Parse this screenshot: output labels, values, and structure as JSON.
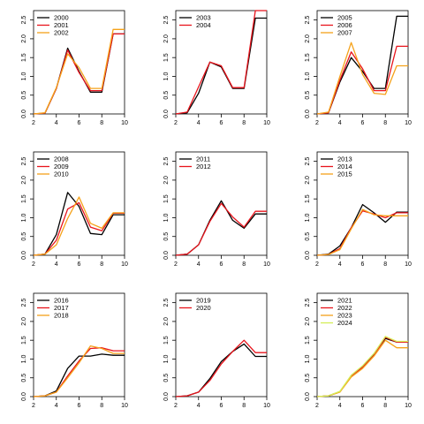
{
  "colors": {
    "black": "#000000",
    "red": "#e8141c",
    "orange": "#f5a21a",
    "yellow_green": "#d4ee57"
  },
  "chart_data": [
    {
      "type": "line",
      "x": [
        2,
        3,
        4,
        5,
        6,
        7,
        8,
        9,
        10
      ],
      "xlim": [
        2,
        10
      ],
      "ylim": [
        0,
        2.75
      ],
      "xticks": [
        2,
        4,
        6,
        8,
        10
      ],
      "yticks": [
        0.0,
        0.5,
        1.0,
        1.5,
        2.0,
        2.5
      ],
      "xtick_labels": [
        "2",
        "4",
        "6",
        "8",
        "10"
      ],
      "ytick_labels": [
        "0.0",
        "0.5",
        "1.0",
        "1.5",
        "2.0",
        "2.5"
      ],
      "legend": "top-left",
      "series": [
        {
          "name": "2000",
          "color": "black",
          "values": [
            0,
            0.02,
            0.68,
            1.75,
            1.13,
            0.58,
            0.58,
            2.13,
            2.13
          ]
        },
        {
          "name": "2001",
          "color": "red",
          "values": [
            0,
            0.02,
            0.68,
            1.7,
            1.1,
            0.62,
            0.62,
            2.13,
            2.13
          ]
        },
        {
          "name": "2002",
          "color": "orange",
          "values": [
            0,
            0.03,
            0.7,
            1.6,
            1.23,
            0.68,
            0.68,
            2.25,
            2.25
          ]
        }
      ]
    },
    {
      "type": "line",
      "x": [
        2,
        3,
        4,
        5,
        6,
        7,
        8,
        9,
        10
      ],
      "xlim": [
        2,
        10
      ],
      "ylim": [
        0,
        2.75
      ],
      "xticks": [
        2,
        4,
        6,
        8,
        10
      ],
      "yticks": [
        0.0,
        0.5,
        1.0,
        1.5,
        2.0,
        2.5
      ],
      "xtick_labels": [
        "2",
        "4",
        "6",
        "8",
        "10"
      ],
      "ytick_labels": [
        "0.0",
        "0.5",
        "1.0",
        "1.5",
        "2.0",
        "2.5"
      ],
      "legend": "top-left",
      "series": [
        {
          "name": "2003",
          "color": "black",
          "values": [
            0,
            0.03,
            0.55,
            1.38,
            1.25,
            0.68,
            0.68,
            2.55,
            2.55
          ]
        },
        {
          "name": "2004",
          "color": "red",
          "values": [
            0,
            0.05,
            0.72,
            1.38,
            1.28,
            0.7,
            0.7,
            2.75,
            2.75
          ]
        }
      ]
    },
    {
      "type": "line",
      "x": [
        2,
        3,
        4,
        5,
        6,
        7,
        8,
        9,
        10
      ],
      "xlim": [
        2,
        10
      ],
      "ylim": [
        0,
        2.75
      ],
      "xticks": [
        2,
        4,
        6,
        8,
        10
      ],
      "yticks": [
        0.0,
        0.5,
        1.0,
        1.5,
        2.0,
        2.5
      ],
      "xtick_labels": [
        "2",
        "4",
        "6",
        "8",
        "10"
      ],
      "ytick_labels": [
        "0.0",
        "0.5",
        "1.0",
        "1.5",
        "2.0",
        "2.5"
      ],
      "legend": "top-left",
      "series": [
        {
          "name": "2005",
          "color": "black",
          "values": [
            0,
            0.03,
            0.85,
            1.5,
            1.13,
            0.68,
            0.68,
            2.6,
            2.6
          ]
        },
        {
          "name": "2006",
          "color": "red",
          "values": [
            0,
            0.03,
            0.9,
            1.65,
            1.2,
            0.62,
            0.62,
            1.8,
            1.8
          ]
        },
        {
          "name": "2007",
          "color": "orange",
          "values": [
            0,
            0.05,
            1.0,
            1.9,
            1.05,
            0.55,
            0.52,
            1.28,
            1.28
          ]
        }
      ]
    },
    {
      "type": "line",
      "x": [
        2,
        3,
        4,
        5,
        6,
        7,
        8,
        9,
        10
      ],
      "xlim": [
        2,
        10
      ],
      "ylim": [
        0,
        2.75
      ],
      "xticks": [
        2,
        4,
        6,
        8,
        10
      ],
      "yticks": [
        0.0,
        0.5,
        1.0,
        1.5,
        2.0,
        2.5
      ],
      "xtick_labels": [
        "2",
        "4",
        "6",
        "8",
        "10"
      ],
      "ytick_labels": [
        "0.0",
        "0.5",
        "1.0",
        "1.5",
        "2.0",
        "2.5"
      ],
      "legend": "top-left",
      "series": [
        {
          "name": "2008",
          "color": "black",
          "values": [
            0,
            0.03,
            0.55,
            1.67,
            1.3,
            0.58,
            0.55,
            1.08,
            1.08
          ]
        },
        {
          "name": "2009",
          "color": "red",
          "values": [
            0,
            0.03,
            0.4,
            1.23,
            1.4,
            0.75,
            0.65,
            1.12,
            1.12
          ]
        },
        {
          "name": "2010",
          "color": "orange",
          "values": [
            0,
            0.03,
            0.28,
            0.98,
            1.55,
            0.85,
            0.72,
            1.13,
            1.13
          ]
        }
      ]
    },
    {
      "type": "line",
      "x": [
        2,
        3,
        4,
        5,
        6,
        7,
        8,
        9,
        10
      ],
      "xlim": [
        2,
        10
      ],
      "ylim": [
        0,
        2.75
      ],
      "xticks": [
        2,
        4,
        6,
        8,
        10
      ],
      "yticks": [
        0.0,
        0.5,
        1.0,
        1.5,
        2.0,
        2.5
      ],
      "xtick_labels": [
        "2",
        "4",
        "6",
        "8",
        "10"
      ],
      "ytick_labels": [
        "0.0",
        "0.5",
        "1.0",
        "1.5",
        "2.0",
        "2.5"
      ],
      "legend": "top-left",
      "series": [
        {
          "name": "2011",
          "color": "black",
          "values": [
            0,
            0.03,
            0.28,
            0.93,
            1.45,
            0.93,
            0.72,
            1.1,
            1.1
          ]
        },
        {
          "name": "2012",
          "color": "red",
          "values": [
            0,
            0.03,
            0.28,
            0.9,
            1.38,
            1.02,
            0.75,
            1.17,
            1.17
          ]
        }
      ]
    },
    {
      "type": "line",
      "x": [
        2,
        3,
        4,
        5,
        6,
        7,
        8,
        9,
        10
      ],
      "xlim": [
        2,
        10
      ],
      "ylim": [
        0,
        2.75
      ],
      "xticks": [
        2,
        4,
        6,
        8,
        10
      ],
      "yticks": [
        0.0,
        0.5,
        1.0,
        1.5,
        2.0,
        2.5
      ],
      "xtick_labels": [
        "2",
        "4",
        "6",
        "8",
        "10"
      ],
      "ytick_labels": [
        "0.0",
        "0.5",
        "1.0",
        "1.5",
        "2.0",
        "2.5"
      ],
      "legend": "top-left",
      "series": [
        {
          "name": "2013",
          "color": "black",
          "values": [
            0,
            0.03,
            0.25,
            0.73,
            1.35,
            1.13,
            0.88,
            1.15,
            1.15
          ]
        },
        {
          "name": "2014",
          "color": "red",
          "values": [
            0,
            0.02,
            0.18,
            0.73,
            1.18,
            1.1,
            1.0,
            1.13,
            1.13
          ]
        },
        {
          "name": "2015",
          "color": "orange",
          "values": [
            0,
            0.02,
            0.15,
            0.7,
            1.22,
            1.08,
            1.05,
            1.05,
            1.05
          ]
        }
      ]
    },
    {
      "type": "line",
      "x": [
        2,
        3,
        4,
        5,
        6,
        7,
        8,
        9,
        10
      ],
      "xlim": [
        2,
        10
      ],
      "ylim": [
        0,
        2.75
      ],
      "xticks": [
        2,
        4,
        6,
        8,
        10
      ],
      "yticks": [
        0.0,
        0.5,
        1.0,
        1.5,
        2.0,
        2.5
      ],
      "xtick_labels": [
        "2",
        "4",
        "6",
        "8",
        "10"
      ],
      "ytick_labels": [
        "0.0",
        "0.5",
        "1.0",
        "1.5",
        "2.0",
        "2.5"
      ],
      "legend": "top-left",
      "series": [
        {
          "name": "2016",
          "color": "black",
          "values": [
            0,
            0.02,
            0.15,
            0.75,
            1.08,
            1.08,
            1.13,
            1.1,
            1.1
          ]
        },
        {
          "name": "2017",
          "color": "red",
          "values": [
            0,
            0.02,
            0.12,
            0.55,
            0.95,
            1.28,
            1.3,
            1.22,
            1.22
          ]
        },
        {
          "name": "2018",
          "color": "orange",
          "values": [
            0,
            0.02,
            0.12,
            0.5,
            0.9,
            1.35,
            1.28,
            1.15,
            1.15
          ]
        }
      ]
    },
    {
      "type": "line",
      "x": [
        2,
        3,
        4,
        5,
        6,
        7,
        8,
        9,
        10
      ],
      "xlim": [
        2,
        10
      ],
      "ylim": [
        0,
        2.75
      ],
      "xticks": [
        2,
        4,
        6,
        8,
        10
      ],
      "yticks": [
        0.0,
        0.5,
        1.0,
        1.5,
        2.0,
        2.5
      ],
      "xtick_labels": [
        "2",
        "4",
        "6",
        "8",
        "10"
      ],
      "ytick_labels": [
        "0.0",
        "0.5",
        "1.0",
        "1.5",
        "2.0",
        "2.5"
      ],
      "legend": "top-left",
      "series": [
        {
          "name": "2019",
          "color": "black",
          "values": [
            0,
            0.02,
            0.12,
            0.48,
            0.93,
            1.2,
            1.4,
            1.07,
            1.07
          ]
        },
        {
          "name": "2020",
          "color": "red",
          "values": [
            0,
            0.02,
            0.12,
            0.43,
            0.87,
            1.2,
            1.5,
            1.17,
            1.17
          ]
        }
      ]
    },
    {
      "type": "line",
      "x": [
        2,
        3,
        4,
        5,
        6,
        7,
        8,
        9,
        10
      ],
      "xlim": [
        2,
        10
      ],
      "ylim": [
        0,
        2.75
      ],
      "xticks": [
        2,
        4,
        6,
        8,
        10
      ],
      "yticks": [
        0.0,
        0.5,
        1.0,
        1.5,
        2.0,
        2.5
      ],
      "xtick_labels": [
        "2",
        "4",
        "6",
        "8",
        "10"
      ],
      "ytick_labels": [
        "0.0",
        "0.5",
        "1.0",
        "1.5",
        "2.0",
        "2.5"
      ],
      "legend": "top-left",
      "series": [
        {
          "name": "2021",
          "color": "black",
          "values": [
            0,
            0.02,
            0.13,
            0.55,
            0.8,
            1.13,
            1.55,
            1.45,
            1.45
          ]
        },
        {
          "name": "2022",
          "color": "red",
          "values": [
            0,
            0.02,
            0.13,
            0.55,
            0.78,
            1.1,
            1.58,
            1.45,
            1.45
          ]
        },
        {
          "name": "2023",
          "color": "orange",
          "values": [
            0,
            0.02,
            0.12,
            0.52,
            0.75,
            1.08,
            1.5,
            1.3,
            1.3
          ]
        },
        {
          "name": "2024",
          "color": "yellow_green",
          "values": [
            0,
            0.02,
            0.14,
            0.57,
            0.82,
            1.15,
            1.6,
            1.47,
            1.47
          ]
        }
      ]
    }
  ]
}
